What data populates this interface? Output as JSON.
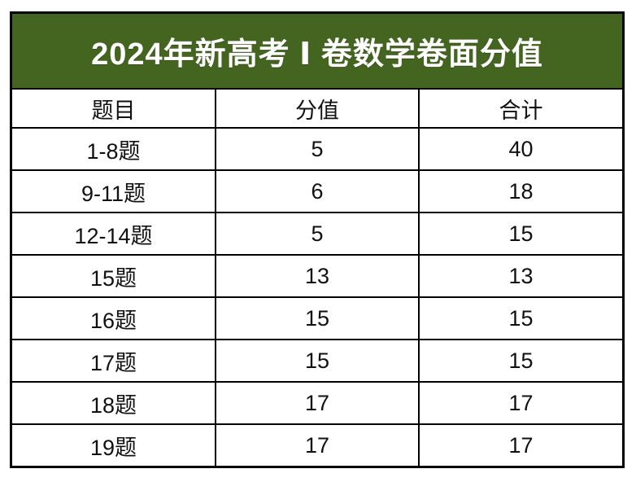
{
  "page": {
    "background_color": "#ffffff"
  },
  "title": {
    "text": "2024年新高考 Ⅰ 卷数学卷面分值",
    "background_color": "#44651f",
    "text_color": "#ffffff"
  },
  "table": {
    "border_color": "#000000",
    "headers": [
      "题目",
      "分值",
      "合计"
    ],
    "rows": [
      [
        "1-8题",
        "5",
        "40"
      ],
      [
        "9-11题",
        "6",
        "18"
      ],
      [
        "12-14题",
        "5",
        "15"
      ],
      [
        "15题",
        "13",
        "13"
      ],
      [
        "16题",
        "15",
        "15"
      ],
      [
        "17题",
        "15",
        "15"
      ],
      [
        "18题",
        "17",
        "17"
      ],
      [
        "19题",
        "17",
        "17"
      ]
    ]
  },
  "chart_data": {
    "type": "table",
    "title": "2024年新高考 Ⅰ 卷数学卷面分值",
    "columns": [
      "题目",
      "分值",
      "合计"
    ],
    "rows": [
      {
        "题目": "1-8题",
        "分值": 5,
        "合计": 40
      },
      {
        "题目": "9-11题",
        "分值": 6,
        "合计": 18
      },
      {
        "题目": "12-14题",
        "分值": 5,
        "合计": 15
      },
      {
        "题目": "15题",
        "分值": 13,
        "合计": 13
      },
      {
        "题目": "16题",
        "分值": 15,
        "合计": 15
      },
      {
        "题目": "17题",
        "分值": 15,
        "合计": 15
      },
      {
        "题目": "18题",
        "分值": 17,
        "合计": 17
      },
      {
        "题目": "19题",
        "分值": 17,
        "合计": 17
      }
    ],
    "layout": {
      "title_banner_color": "#44651f",
      "grid": "black solid borders",
      "column_alignment": "center"
    }
  }
}
